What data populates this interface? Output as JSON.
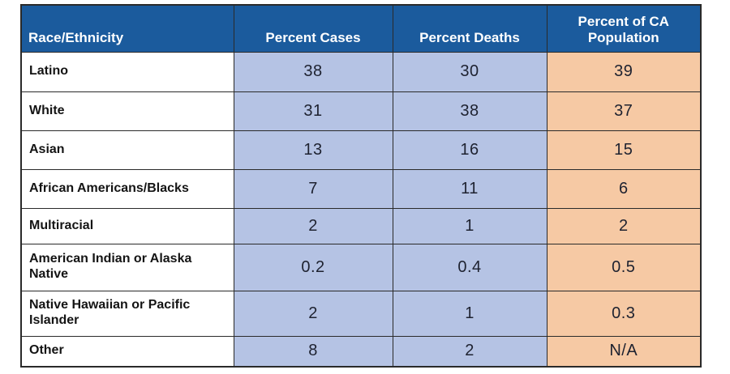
{
  "table": {
    "columns": [
      "Race/Ethnicity",
      "Percent Cases",
      "Percent Deaths",
      "Percent of CA Population"
    ],
    "rows": [
      {
        "race": "Latino",
        "cases": "38",
        "deaths": "30",
        "population": "39"
      },
      {
        "race": "White",
        "cases": "31",
        "deaths": "38",
        "population": "37"
      },
      {
        "race": "Asian",
        "cases": "13",
        "deaths": "16",
        "population": "15"
      },
      {
        "race": "African Americans/Blacks",
        "cases": "7",
        "deaths": "11",
        "population": "6"
      },
      {
        "race": "Multiracial",
        "cases": "2",
        "deaths": "1",
        "population": "2"
      },
      {
        "race": "American Indian or Alaska Native",
        "cases": "0.2",
        "deaths": "0.4",
        "population": "0.5"
      },
      {
        "race": "Native Hawaiian or Pacific Islander",
        "cases": "2",
        "deaths": "1",
        "population": "0.3"
      },
      {
        "race": "Other",
        "cases": "8",
        "deaths": "2",
        "population": "N/A"
      }
    ]
  },
  "colors": {
    "header_bg": "#1B5B9D",
    "header_text": "#FFFFFF",
    "cases_deaths_bg": "#B5C3E4",
    "population_bg": "#F6C9A4",
    "border": "#2A2A2A",
    "value_text": "#1E2230"
  },
  "chart_data": {
    "type": "table",
    "columns": [
      "Race/Ethnicity",
      "Percent Cases",
      "Percent Deaths",
      "Percent of CA Population"
    ],
    "rows": [
      [
        "Latino",
        38,
        30,
        39
      ],
      [
        "White",
        31,
        38,
        37
      ],
      [
        "Asian",
        13,
        16,
        15
      ],
      [
        "African Americans/Blacks",
        7,
        11,
        6
      ],
      [
        "Multiracial",
        2,
        1,
        2
      ],
      [
        "American Indian or Alaska Native",
        0.2,
        0.4,
        0.5
      ],
      [
        "Native Hawaiian or Pacific Islander",
        2,
        1,
        0.3
      ],
      [
        "Other",
        8,
        2,
        "N/A"
      ]
    ]
  }
}
